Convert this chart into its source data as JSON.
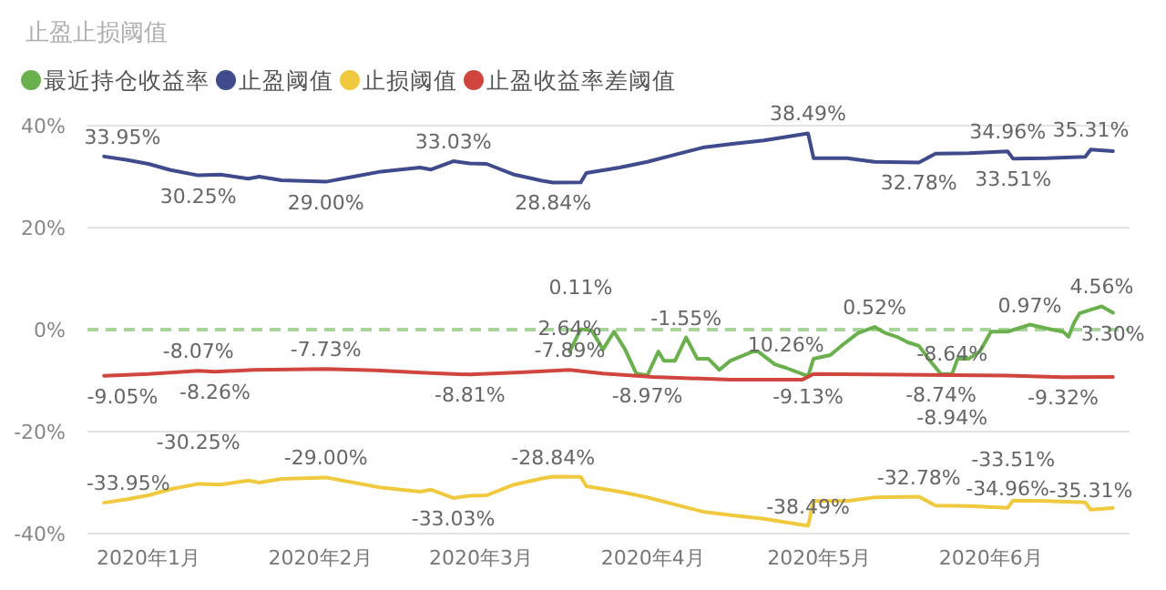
{
  "chart_data": {
    "type": "line",
    "title": "止盈止损阈值",
    "legend": "top left",
    "grid": "y",
    "marker": "none",
    "line_style": "solid",
    "xlim": [
      "2019-12-21",
      "2020-06-26"
    ],
    "xticks": [
      {
        "value": "2020-01-01",
        "label": "2020年1月"
      },
      {
        "value": "2020-02-01",
        "label": "2020年2月"
      },
      {
        "value": "2020-03-01",
        "label": "2020年3月"
      },
      {
        "value": "2020-04-01",
        "label": "2020年4月"
      },
      {
        "value": "2020-05-01",
        "label": "2020年5月"
      },
      {
        "value": "2020-06-01",
        "label": "2020年6月"
      }
    ],
    "ylim": [
      -40,
      40
    ],
    "yticks": [
      {
        "value": -40,
        "label": "-40%"
      },
      {
        "value": -20,
        "label": "-20%"
      },
      {
        "value": 0,
        "label": "0%"
      },
      {
        "value": 20,
        "label": "20%"
      },
      {
        "value": 40,
        "label": "40%"
      }
    ],
    "ref_lines": [
      {
        "axis": "y",
        "value": 0,
        "color": "#a8d59a",
        "line_style": "dashed"
      }
    ],
    "annotations": [
      {
        "text": "2.64%",
        "x": "2020-03-17",
        "y": -4.3
      },
      {
        "text": "10.26%",
        "x": "2020-04-25",
        "y": -7.5
      }
    ],
    "series": [
      {
        "name": "最近持仓收益率",
        "color": "#6ab04c",
        "x": [
          "2020-03-17",
          "2020-03-19",
          "2020-03-21",
          "2020-03-23",
          "2020-03-25",
          "2020-03-27",
          "2020-03-29",
          "2020-03-31",
          "2020-04-02",
          "2020-04-03",
          "2020-04-05",
          "2020-04-07",
          "2020-04-09",
          "2020-04-11",
          "2020-04-13",
          "2020-04-15",
          "2020-04-19",
          "2020-04-20",
          "2020-04-23",
          "2020-04-25",
          "2020-04-29",
          "2020-04-30",
          "2020-05-03",
          "2020-05-05",
          "2020-05-08",
          "2020-05-11",
          "2020-05-13",
          "2020-05-15",
          "2020-05-17",
          "2020-05-19",
          "2020-05-21",
          "2020-05-23",
          "2020-05-25",
          "2020-05-26",
          "2020-05-28",
          "2020-05-30",
          "2020-06-01",
          "2020-06-04",
          "2020-06-08",
          "2020-06-12",
          "2020-06-14",
          "2020-06-15",
          "2020-06-16",
          "2020-06-17",
          "2020-06-19",
          "2020-06-21",
          "2020-06-23"
        ],
        "values": [
          -4.3,
          0.11,
          -0.2,
          -3.9,
          -0.4,
          -3.9,
          -8.6,
          -8.97,
          -4.3,
          -6.1,
          -6.1,
          -1.55,
          -5.7,
          -5.7,
          -7.9,
          -6.1,
          -4.3,
          -4.3,
          -6.8,
          -7.5,
          -9.13,
          -5.7,
          -5.0,
          -3.2,
          -0.7,
          0.52,
          -0.7,
          -1.4,
          -2.5,
          -3.2,
          -6.1,
          -8.74,
          -8.64,
          -5.7,
          -5.7,
          -4.3,
          -0.4,
          -0.4,
          0.97,
          0,
          -0.4,
          -1.4,
          1.4,
          3.2,
          3.9,
          4.56,
          3.3
        ],
        "value_labels": [
          null,
          "0.11%",
          null,
          null,
          null,
          null,
          null,
          "-8.97%",
          null,
          null,
          null,
          "-1.55%",
          null,
          null,
          null,
          null,
          null,
          null,
          null,
          null,
          "-9.13%",
          null,
          null,
          null,
          null,
          "0.52%",
          null,
          null,
          null,
          null,
          null,
          "-8.74%",
          "-8.64%",
          null,
          null,
          null,
          null,
          null,
          "0.97%",
          null,
          null,
          null,
          null,
          null,
          null,
          "4.56%",
          "3.30%"
        ]
      },
      {
        "name": "止盈阈值",
        "color": "#3f4b8c",
        "x": [
          "2019-12-24",
          "2019-12-28",
          "2020-01-01",
          "2020-01-05",
          "2020-01-10",
          "2020-01-14",
          "2020-01-19",
          "2020-01-21",
          "2020-01-25",
          "2020-02-02",
          "2020-02-07",
          "2020-02-12",
          "2020-02-19",
          "2020-02-21",
          "2020-02-25",
          "2020-02-28",
          "2020-03-02",
          "2020-03-07",
          "2020-03-12",
          "2020-03-14",
          "2020-03-19",
          "2020-03-20",
          "2020-03-26",
          "2020-03-31",
          "2020-04-05",
          "2020-04-10",
          "2020-04-15",
          "2020-04-21",
          "2020-04-29",
          "2020-04-30",
          "2020-05-06",
          "2020-05-11",
          "2020-05-19",
          "2020-05-22",
          "2020-05-28",
          "2020-06-04",
          "2020-06-05",
          "2020-06-11",
          "2020-06-18",
          "2020-06-19",
          "2020-06-23"
        ],
        "values": [
          33.95,
          33.3,
          32.5,
          31.3,
          30.25,
          30.4,
          29.6,
          30.0,
          29.3,
          29.0,
          30.0,
          31.0,
          31.8,
          31.4,
          33.03,
          32.6,
          32.5,
          30.4,
          29.2,
          28.84,
          28.9,
          30.7,
          31.8,
          32.9,
          34.3,
          35.7,
          36.4,
          37.1,
          38.49,
          33.6,
          33.6,
          32.9,
          32.78,
          34.5,
          34.6,
          34.96,
          33.51,
          33.6,
          33.9,
          35.31,
          35.0
        ],
        "value_labels": [
          "33.95%",
          null,
          null,
          null,
          "30.25%",
          null,
          null,
          null,
          null,
          "29.00%",
          null,
          null,
          null,
          null,
          "33.03%",
          null,
          null,
          null,
          null,
          "28.84%",
          null,
          null,
          null,
          null,
          null,
          null,
          null,
          null,
          "38.49%",
          null,
          null,
          null,
          "32.78%",
          null,
          null,
          "34.96%",
          "33.51%",
          null,
          null,
          "35.31%",
          null
        ]
      },
      {
        "name": "止损阈值",
        "color": "#f0c93f",
        "x": [
          "2019-12-24",
          "2019-12-28",
          "2020-01-01",
          "2020-01-05",
          "2020-01-10",
          "2020-01-14",
          "2020-01-19",
          "2020-01-21",
          "2020-01-25",
          "2020-02-02",
          "2020-02-07",
          "2020-02-12",
          "2020-02-19",
          "2020-02-21",
          "2020-02-25",
          "2020-02-28",
          "2020-03-02",
          "2020-03-07",
          "2020-03-12",
          "2020-03-14",
          "2020-03-19",
          "2020-03-20",
          "2020-03-26",
          "2020-03-31",
          "2020-04-05",
          "2020-04-10",
          "2020-04-15",
          "2020-04-21",
          "2020-04-29",
          "2020-04-30",
          "2020-05-06",
          "2020-05-11",
          "2020-05-19",
          "2020-05-22",
          "2020-05-28",
          "2020-06-04",
          "2020-06-05",
          "2020-06-11",
          "2020-06-18",
          "2020-06-19",
          "2020-06-23"
        ],
        "values": [
          -33.95,
          -33.3,
          -32.5,
          -31.3,
          -30.25,
          -30.4,
          -29.6,
          -30.0,
          -29.3,
          -29.0,
          -30.0,
          -31.0,
          -31.8,
          -31.4,
          -33.03,
          -32.6,
          -32.5,
          -30.4,
          -29.2,
          -28.84,
          -28.9,
          -30.7,
          -31.8,
          -32.9,
          -34.3,
          -35.7,
          -36.4,
          -37.1,
          -38.49,
          -33.6,
          -33.6,
          -32.9,
          -32.78,
          -34.5,
          -34.6,
          -34.96,
          -33.51,
          -33.6,
          -33.9,
          -35.31,
          -35.0
        ],
        "value_labels": [
          "-33.95%",
          null,
          null,
          null,
          "-30.25%",
          null,
          null,
          null,
          null,
          "-29.00%",
          null,
          null,
          null,
          null,
          "-33.03%",
          null,
          null,
          null,
          null,
          "-28.84%",
          null,
          null,
          null,
          null,
          null,
          null,
          null,
          null,
          "-38.49%",
          null,
          null,
          null,
          "-32.78%",
          null,
          null,
          "-34.96%",
          "-33.51%",
          null,
          null,
          "-35.31%",
          null
        ]
      },
      {
        "name": "止盈收益率差阈值",
        "color": "#d0453e",
        "x": [
          "2019-12-24",
          "2020-01-01",
          "2020-01-10",
          "2020-01-13",
          "2020-01-20",
          "2020-02-02",
          "2020-02-11",
          "2020-02-20",
          "2020-02-28",
          "2020-03-08",
          "2020-03-17",
          "2020-03-23",
          "2020-04-01",
          "2020-04-15",
          "2020-04-28",
          "2020-04-30",
          "2020-05-11",
          "2020-05-25",
          "2020-06-04",
          "2020-06-14",
          "2020-06-23"
        ],
        "values": [
          -9.05,
          -8.7,
          -8.07,
          -8.26,
          -7.9,
          -7.73,
          -8.0,
          -8.5,
          -8.81,
          -8.4,
          -7.89,
          -8.6,
          -9.3,
          -9.8,
          -9.8,
          -8.7,
          -8.8,
          -8.94,
          -9.0,
          -9.32,
          -9.3
        ],
        "value_labels": [
          "-9.05%",
          null,
          "-8.07%",
          "-8.26%",
          null,
          "-7.73%",
          null,
          null,
          "-8.81%",
          null,
          "-7.89%",
          null,
          null,
          null,
          null,
          null,
          null,
          "-8.94%",
          null,
          "-9.32%",
          null
        ]
      }
    ]
  }
}
